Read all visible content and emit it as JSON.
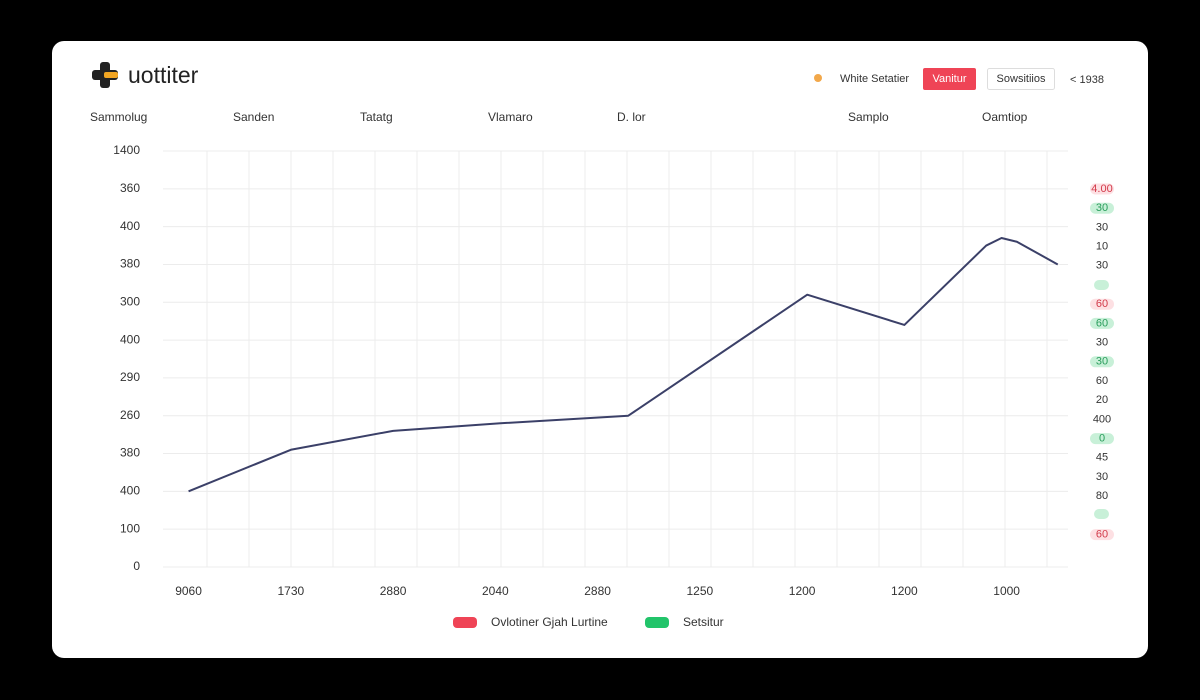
{
  "header": {
    "logo": "uottiter",
    "status": "White Setatier",
    "primary_button": "Vanitur",
    "secondary_button": "Sowsitiios",
    "user": "< 1938"
  },
  "columns": [
    "Sammolug",
    "Sanden",
    "Tatatg",
    "Vlamaro",
    "D. lor",
    "Samplo",
    "Oamtiop"
  ],
  "chart_data": {
    "type": "line",
    "x": [
      0,
      1,
      2,
      3.05,
      4.3,
      6.05,
      7,
      7.8,
      7.95,
      8.1,
      8.5
    ],
    "series": [
      {
        "color": "#3b4068",
        "values": [
          2.0,
          3.1,
          3.6,
          3.8,
          4.0,
          7.2,
          6.4,
          8.5,
          8.7,
          8.6,
          8.0
        ]
      }
    ],
    "xlim": [
      -0.25,
      8.6
    ],
    "xticks": [
      {
        "value": 0,
        "label": "9060"
      },
      {
        "value": 1,
        "label": "1730"
      },
      {
        "value": 2,
        "label": "2880"
      },
      {
        "value": 3,
        "label": "2040"
      },
      {
        "value": 4,
        "label": "2880"
      },
      {
        "value": 5,
        "label": "1250"
      },
      {
        "value": 6,
        "label": "1200"
      },
      {
        "value": 7,
        "label": "1200"
      },
      {
        "value": 8,
        "label": "1000"
      }
    ],
    "ylim": [
      0,
      11
    ],
    "yticks": [
      0,
      {
        "value": 1,
        "label": "100"
      },
      {
        "value": 2,
        "label": "400"
      },
      {
        "value": 3,
        "label": "380"
      },
      {
        "value": 4,
        "label": "260"
      },
      {
        "value": 5,
        "label": "290"
      },
      {
        "value": 6,
        "label": "400"
      },
      {
        "value": 7,
        "label": "300"
      },
      {
        "value": 8,
        "label": "380"
      },
      {
        "value": 9,
        "label": "400"
      },
      {
        "value": 10,
        "label": "360"
      },
      {
        "value": 11,
        "label": "1400"
      }
    ],
    "grid": true
  },
  "side_labels": [
    {
      "text": "4.00",
      "tone": "red"
    },
    {
      "text": "30",
      "tone": "green"
    },
    {
      "text": "30",
      "tone": "plain"
    },
    {
      "text": "10",
      "tone": "plain"
    },
    {
      "text": "30",
      "tone": "plain"
    },
    null,
    {
      "text": "60",
      "tone": "red"
    },
    {
      "text": "60",
      "tone": "green"
    },
    {
      "text": "30",
      "tone": "plain"
    },
    {
      "text": "30",
      "tone": "green"
    },
    {
      "text": "60",
      "tone": "plain"
    },
    {
      "text": "20",
      "tone": "plain"
    },
    {
      "text": "400",
      "tone": "plain"
    },
    {
      "text": "0",
      "tone": "green"
    },
    {
      "text": "45",
      "tone": "plain"
    },
    {
      "text": "30",
      "tone": "plain"
    },
    {
      "text": "80",
      "tone": "plain"
    },
    null,
    {
      "text": "60",
      "tone": "red"
    }
  ],
  "legend": [
    {
      "name": "Ovlotiner  Gjah Lurtine",
      "color": "#ef4456"
    },
    {
      "name": "Setsitur",
      "color": "#22c46a"
    }
  ]
}
